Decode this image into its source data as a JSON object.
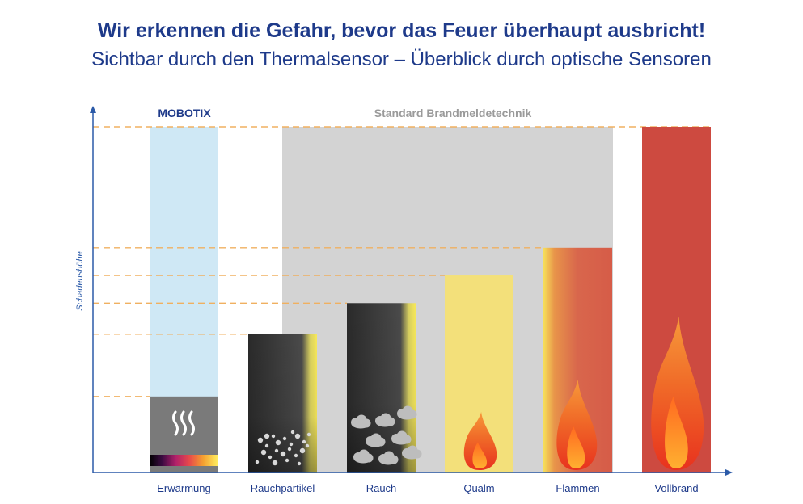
{
  "page": {
    "title": "Wir erkennen die Gefahr, bevor das Feuer überhaupt ausbricht!",
    "subtitle": "Sichtbar durch den Thermalsensor – Überblick durch optische Sensoren"
  },
  "chart_data": {
    "type": "bar",
    "title": "Wir erkennen die Gefahr, bevor das Feuer überhaupt ausbricht!",
    "subtitle": "Sichtbar durch den Thermalsensor – Überblick durch optische Sensoren",
    "xlabel": "",
    "ylabel": "Schadenshöhe",
    "ylim": [
      0,
      100
    ],
    "categories": [
      "Erwärmung",
      "Rauchpartikel",
      "Rauch",
      "Qualm",
      "Flammen",
      "Vollbrand"
    ],
    "values": [
      22,
      40,
      49,
      57,
      65,
      100
    ],
    "regions": [
      {
        "label": "MOBOTIX",
        "covers": [
          "Erwärmung"
        ]
      },
      {
        "label": "Standard Brandmeldetechnik",
        "covers": [
          "Rauchpartikel",
          "Rauch",
          "Qualm",
          "Flammen"
        ]
      }
    ],
    "grid": "dashed reference lines at bar tops",
    "colors": {
      "axis": "#2b5aa8",
      "mobotix_region": "#cfe8f5",
      "standard_region": "#d3d3d3",
      "dashes": "#f0b060",
      "erwaermung": "#7a7a7a",
      "dark_bars": "#2a2a2a",
      "qualm": "#f3e07a",
      "flammen": "#d8604a",
      "vollbrand": "#cd4a40",
      "text_blue": "#1e3a8a",
      "text_gray": "#9a9a9a"
    }
  }
}
